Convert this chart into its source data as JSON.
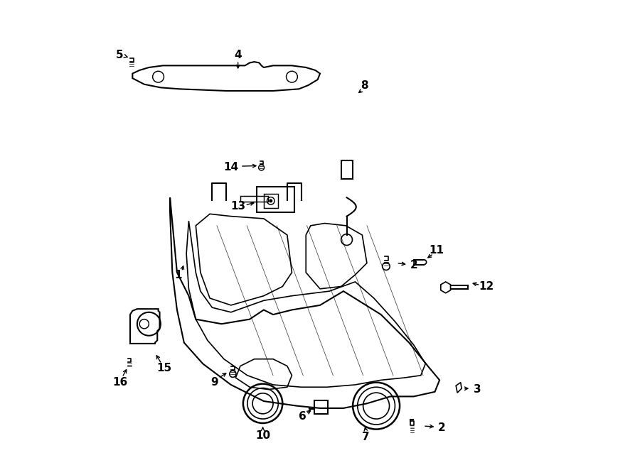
{
  "bg_color": "#ffffff",
  "line_color": "#000000",
  "line_width": 1.5,
  "fig_width": 9.0,
  "fig_height": 6.62
}
